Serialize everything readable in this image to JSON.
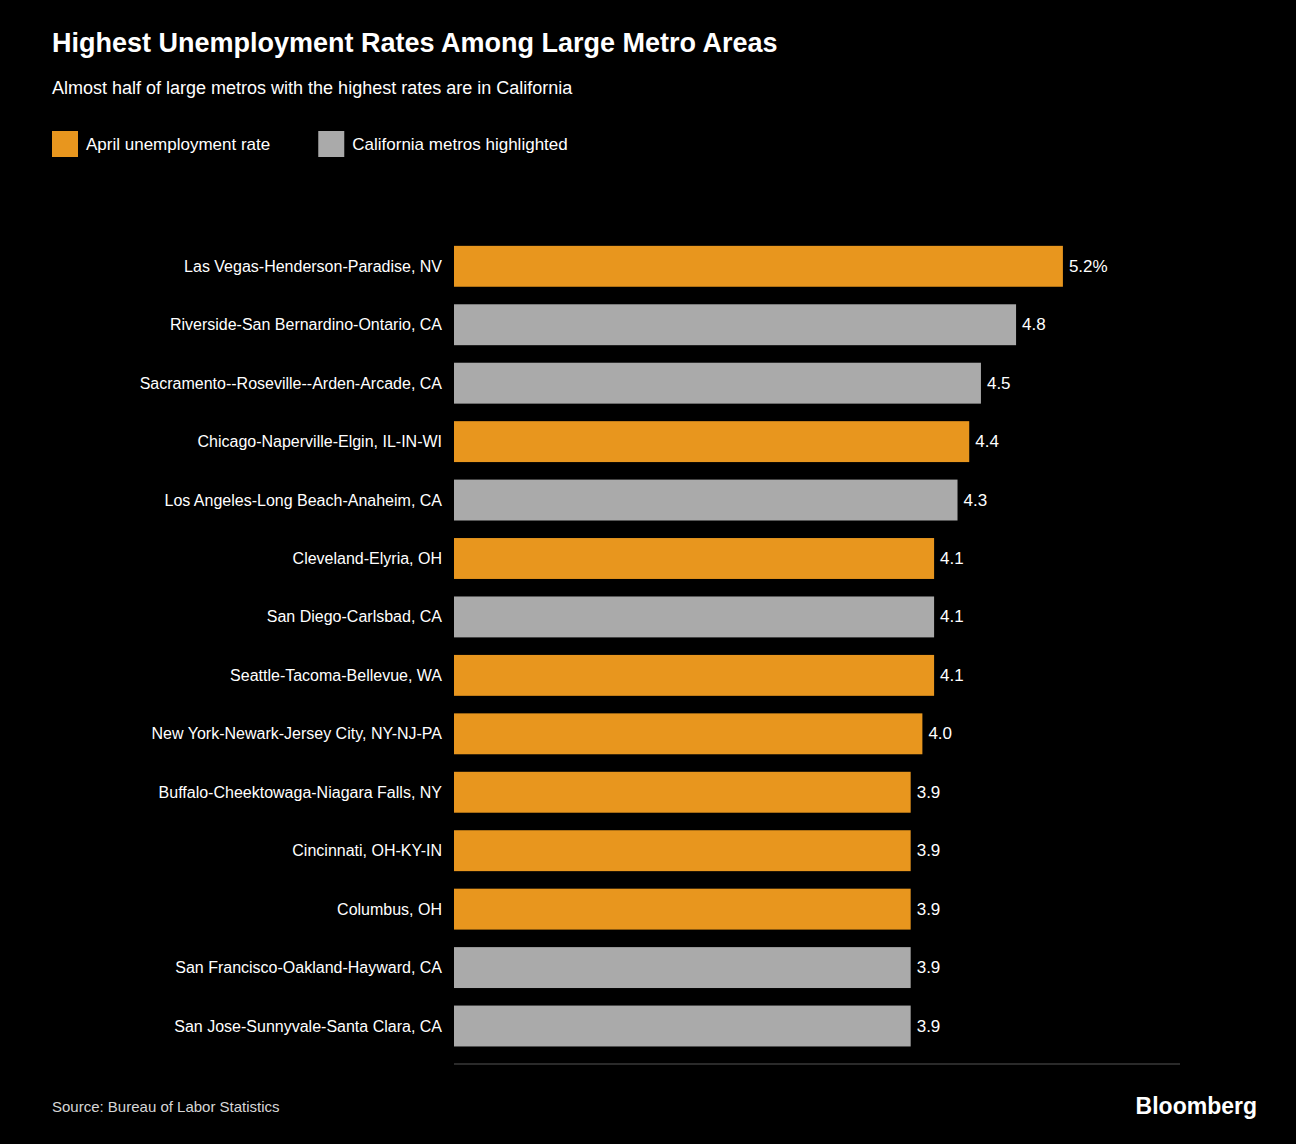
{
  "chart_data": {
    "type": "bar",
    "orientation": "horizontal",
    "title": "Highest Unemployment Rates Among Large Metro Areas",
    "subtitle": "Almost half of large metros with the highest rates are in California",
    "legend_entries": [
      {
        "name": "April unemployment rate",
        "color": "#E8961E"
      },
      {
        "name": "California metros highlighted",
        "color": "#AAAAAA"
      }
    ],
    "source": "Source: Bureau of Labor Statistics",
    "annotations": [
      "Bloomberg"
    ],
    "categories": [
      "Las Vegas-Henderson-Paradise, NV",
      "Riverside-San Bernardino-Ontario, CA",
      "Sacramento--Roseville--Arden-Arcade, CA",
      "Chicago-Naperville-Elgin, IL-IN-WI",
      "Los Angeles-Long Beach-Anaheim, CA",
      "Cleveland-Elyria, OH",
      "San Diego-Carlsbad, CA",
      "Seattle-Tacoma-Bellevue, WA",
      "New York-Newark-Jersey City, NY-NJ-PA",
      "Buffalo-Cheektowaga-Niagara Falls, NY",
      "Cincinnati, OH-KY-IN",
      "Columbus, OH",
      "San Francisco-Oakland-Hayward, CA",
      "San Jose-Sunnyvale-Santa Clara, CA"
    ],
    "values": [
      5.2,
      4.8,
      4.5,
      4.4,
      4.3,
      4.1,
      4.1,
      4.1,
      4.0,
      3.9,
      3.9,
      3.9,
      3.9,
      3.9
    ],
    "value_labels": [
      "5.2%",
      "4.8",
      "4.5",
      "4.4",
      "4.3",
      "4.1",
      "4.1",
      "4.1",
      "4.0",
      "3.9",
      "3.9",
      "3.9",
      "3.9",
      "3.9"
    ],
    "colors": [
      "#E8961E",
      "#AAAAAA",
      "#AAAAAA",
      "#E8961E",
      "#AAAAAA",
      "#E8961E",
      "#AAAAAA",
      "#E8961E",
      "#E8961E",
      "#E8961E",
      "#E8961E",
      "#E8961E",
      "#AAAAAA",
      "#AAAAAA"
    ],
    "xlim": [
      0,
      6.2
    ],
    "data_labels": true,
    "tick_labels": "y",
    "grid": false
  }
}
